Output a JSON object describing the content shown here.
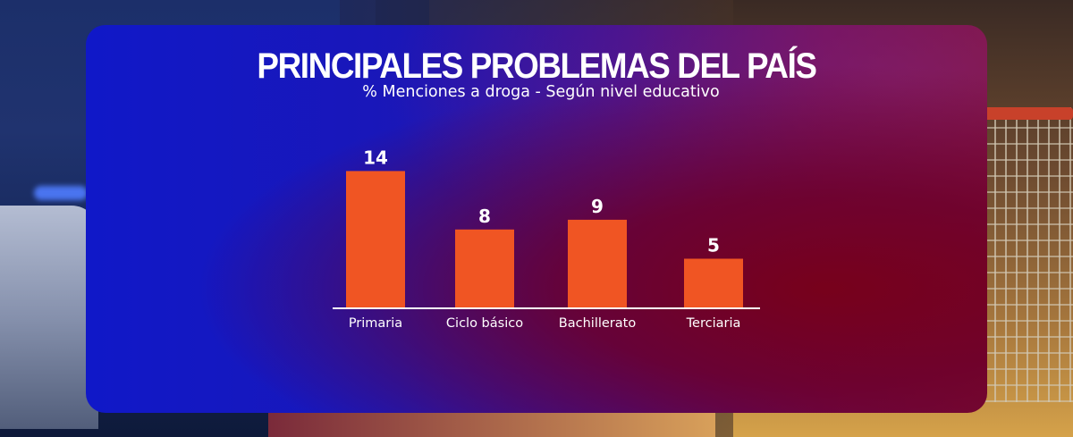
{
  "header": {
    "title": "PRINCIPALES PROBLEMAS DEL PAÍS",
    "subtitle": "% Menciones a droga - Según nivel educativo"
  },
  "colors": {
    "bar": "#f05523",
    "panel_left": "#1018c8",
    "panel_right": "#7b0f3a",
    "text": "#ffffff"
  },
  "chart_data": {
    "type": "bar",
    "title": "PRINCIPALES PROBLEMAS DEL PAÍS",
    "subtitle": "% Menciones a droga - Según nivel educativo",
    "categories": [
      "Primaria",
      "Ciclo básico",
      "Bachillerato",
      "Terciaria"
    ],
    "values": [
      14,
      8,
      9,
      5
    ],
    "data_labels": [
      "14",
      "8",
      "9",
      "5"
    ],
    "xlabel": "",
    "ylabel": "",
    "grid": false,
    "legend": "none"
  }
}
